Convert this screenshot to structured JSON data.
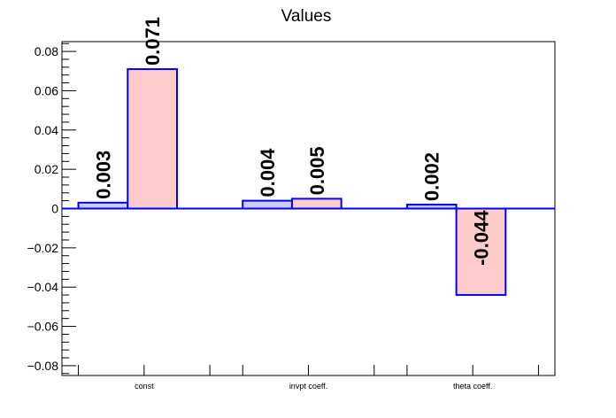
{
  "chart_data": {
    "type": "bar",
    "title": "Values",
    "xlabel": "",
    "ylabel": "",
    "categories": [
      "const",
      "invpt coeff.",
      "theta coeff."
    ],
    "series": [
      {
        "values": [
          0.003,
          0.004,
          0.002
        ],
        "labels": [
          "0.003",
          "0.004",
          "0.002"
        ],
        "color": "#ccccff",
        "edge": "#0000ff"
      },
      {
        "values": [
          0.071,
          0.005,
          -0.044
        ],
        "labels": [
          "0.071",
          "0.005",
          "-0.044"
        ],
        "color": "#ffcccc",
        "edge": "#0000ff"
      }
    ],
    "ylim": [
      -0.085,
      0.085
    ],
    "yticks": [
      -0.08,
      -0.06,
      -0.04,
      -0.02,
      0,
      0.02,
      0.04,
      0.06,
      0.08
    ],
    "ytick_labels": [
      "−0.08",
      "−0.06",
      "−0.04",
      "−0.02",
      "0",
      "0.02",
      "0.04",
      "0.06",
      "0.08"
    ],
    "grid": false,
    "legend": "none"
  }
}
